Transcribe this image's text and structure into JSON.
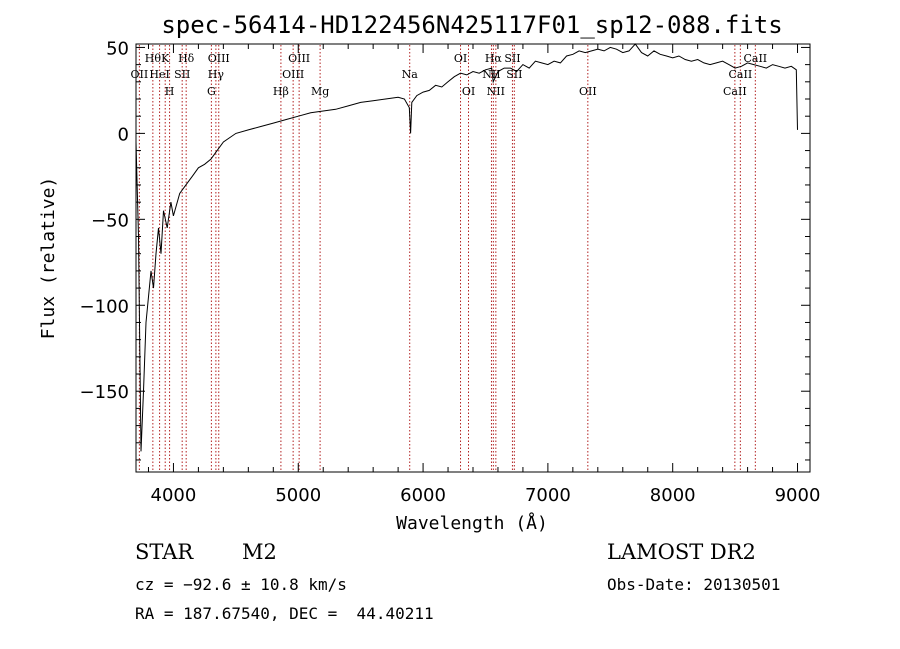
{
  "chart_data": {
    "type": "line",
    "title": "spec-56414-HD122456N425117F01_sp12-088.fits",
    "xlabel": "Wavelength (Å)",
    "ylabel": "Flux (relative)",
    "xlim": [
      3700,
      9100
    ],
    "ylim": [
      -197,
      52
    ],
    "x_ticks": [
      4000,
      5000,
      6000,
      7000,
      8000,
      9000
    ],
    "x_tick_labels": [
      "4000",
      "5000",
      "6000",
      "7000",
      "8000",
      "9000"
    ],
    "y_ticks": [
      50,
      0,
      -50,
      -100,
      -150
    ],
    "y_tick_labels": [
      "50",
      "0",
      "−50",
      "−100",
      "−150"
    ],
    "grid": false,
    "series": [
      {
        "x": [
          3700,
          3720,
          3740,
          3760,
          3780,
          3800,
          3820,
          3840,
          3860,
          3880,
          3900,
          3920,
          3950,
          3980,
          4000,
          4050,
          4100,
          4150,
          4200,
          4250,
          4300,
          4350,
          4400,
          4500,
          4600,
          4700,
          4800,
          4900,
          5000,
          5100,
          5200,
          5300,
          5400,
          5500,
          5600,
          5700,
          5800,
          5850,
          5890,
          5900,
          5910,
          5950,
          6000,
          6050,
          6100,
          6150,
          6200,
          6250,
          6300,
          6350,
          6400,
          6450,
          6500,
          6550,
          6562,
          6600,
          6650,
          6700,
          6750,
          6800,
          6850,
          6900,
          6950,
          7000,
          7050,
          7100,
          7150,
          7200,
          7250,
          7300,
          7350,
          7400,
          7450,
          7500,
          7550,
          7600,
          7650,
          7700,
          7750,
          7800,
          7850,
          7900,
          7950,
          8000,
          8050,
          8100,
          8150,
          8200,
          8250,
          8300,
          8350,
          8400,
          8450,
          8500,
          8550,
          8600,
          8650,
          8700,
          8750,
          8800,
          8850,
          8900,
          8950,
          8990,
          9000
        ],
        "values": [
          -5,
          -60,
          -185,
          -150,
          -110,
          -95,
          -80,
          -90,
          -70,
          -55,
          -70,
          -45,
          -55,
          -40,
          -48,
          -35,
          -30,
          -25,
          -20,
          -18,
          -15,
          -10,
          -5,
          0,
          2,
          4,
          6,
          8,
          10,
          12,
          13,
          14,
          16,
          18,
          19,
          20,
          21,
          20,
          15,
          0,
          18,
          22,
          24,
          25,
          28,
          27,
          30,
          33,
          35,
          34,
          36,
          35,
          37,
          38,
          30,
          36,
          38,
          38,
          36,
          40,
          38,
          42,
          41,
          40,
          42,
          41,
          45,
          46,
          48,
          47,
          48,
          49,
          48,
          50,
          49,
          47,
          48,
          52,
          47,
          45,
          48,
          46,
          45,
          44,
          45,
          43,
          42,
          43,
          41,
          40,
          41,
          42,
          40,
          38,
          39,
          41,
          40,
          39,
          38,
          40,
          39,
          38,
          39,
          37,
          2
        ]
      }
    ],
    "line_markers": [
      {
        "wavelength": 3727,
        "top": "",
        "middle": "OII",
        "bottom": ""
      },
      {
        "wavelength": 3835,
        "top": "Hθ",
        "middle": "",
        "bottom": ""
      },
      {
        "wavelength": 3889,
        "top": "",
        "middle": "HeI",
        "bottom": ""
      },
      {
        "wavelength": 3934,
        "top": "K",
        "middle": "",
        "bottom": ""
      },
      {
        "wavelength": 3969,
        "top": "",
        "middle": "",
        "bottom": "H"
      },
      {
        "wavelength": 4070,
        "top": "",
        "middle": "SII",
        "bottom": ""
      },
      {
        "wavelength": 4102,
        "top": "Hδ",
        "middle": "",
        "bottom": ""
      },
      {
        "wavelength": 4304,
        "top": "",
        "middle": "",
        "bottom": "G"
      },
      {
        "wavelength": 4340,
        "top": "",
        "middle": "Hγ",
        "bottom": ""
      },
      {
        "wavelength": 4363,
        "top": "OIII",
        "middle": "",
        "bottom": ""
      },
      {
        "wavelength": 4861,
        "top": "",
        "middle": "",
        "bottom": "Hβ"
      },
      {
        "wavelength": 4959,
        "top": "",
        "middle": "OIII",
        "bottom": ""
      },
      {
        "wavelength": 5007,
        "top": "OIII",
        "middle": "",
        "bottom": ""
      },
      {
        "wavelength": 5175,
        "top": "",
        "middle": "",
        "bottom": "Mg"
      },
      {
        "wavelength": 5893,
        "top": "",
        "middle": "Na",
        "bottom": ""
      },
      {
        "wavelength": 6300,
        "top": "OI",
        "middle": "",
        "bottom": ""
      },
      {
        "wavelength": 6364,
        "top": "",
        "middle": "",
        "bottom": "OI"
      },
      {
        "wavelength": 6548,
        "top": "",
        "middle": "NII",
        "bottom": ""
      },
      {
        "wavelength": 6563,
        "top": "Hα",
        "middle": "",
        "bottom": ""
      },
      {
        "wavelength": 6583,
        "top": "",
        "middle": "",
        "bottom": "NII"
      },
      {
        "wavelength": 6716,
        "top": "SII",
        "middle": "",
        "bottom": ""
      },
      {
        "wavelength": 6731,
        "top": "",
        "middle": "SII",
        "bottom": ""
      },
      {
        "wavelength": 7320,
        "top": "",
        "middle": "",
        "bottom": "OII"
      },
      {
        "wavelength": 8498,
        "top": "",
        "middle": "",
        "bottom": "CaII"
      },
      {
        "wavelength": 8542,
        "top": "",
        "middle": "CaII",
        "bottom": ""
      },
      {
        "wavelength": 8662,
        "top": "CaII",
        "middle": "",
        "bottom": ""
      }
    ],
    "marker_color": "#b22222"
  },
  "info": {
    "object_class": "STAR",
    "subclass": "M2",
    "survey": "LAMOST DR2",
    "redshift_line": "cz = −92.6 ± 10.8 km/s",
    "obs_date_line": "Obs-Date: 20130501",
    "coords_line": "RA = 187.67540, DEC =  44.40211"
  }
}
